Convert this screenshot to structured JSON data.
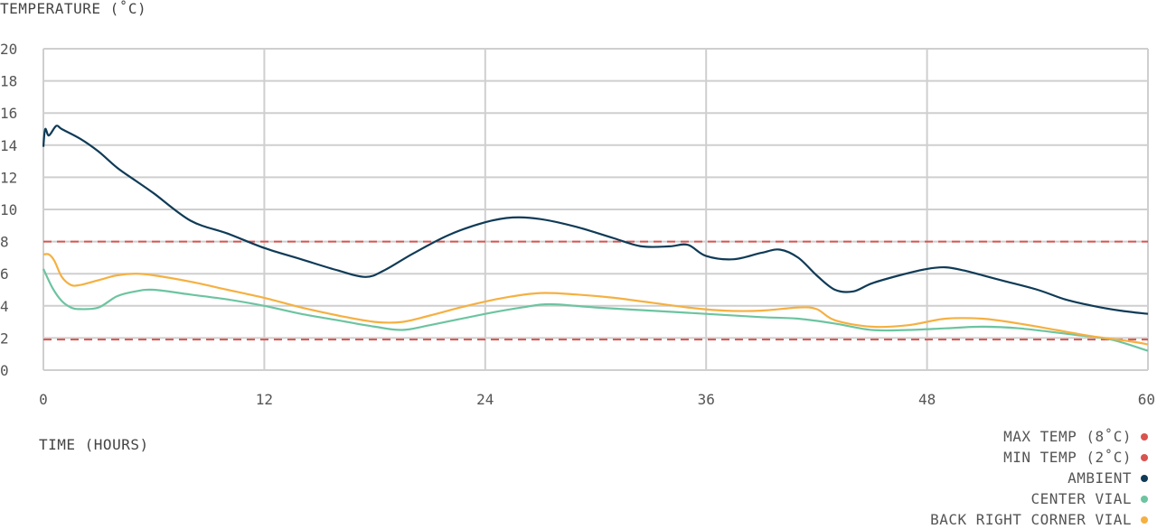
{
  "chart_data": {
    "type": "line",
    "ylabel": "TEMPERATURE (˚C)",
    "xlabel": "TIME (HOURS)",
    "xlim": [
      0,
      60
    ],
    "ylim": [
      0,
      20
    ],
    "x_ticks": [
      0,
      12,
      24,
      36,
      48,
      60
    ],
    "y_ticks": [
      0,
      2,
      4,
      6,
      8,
      10,
      12,
      14,
      16,
      18,
      20
    ],
    "grid": true,
    "legend_position": "bottom-right",
    "thresholds": [
      {
        "name": "MAX TEMP (8˚C)",
        "value": 8,
        "color": "#d9534f"
      },
      {
        "name": "MIN TEMP (2˚C)",
        "value": 1.9,
        "color": "#d9534f"
      }
    ],
    "series": [
      {
        "name": "AMBIENT",
        "color": "#0f3b57",
        "points": [
          [
            0,
            13.9
          ],
          [
            0.1,
            15.0
          ],
          [
            0.3,
            14.6
          ],
          [
            0.7,
            15.2
          ],
          [
            1,
            15.0
          ],
          [
            2,
            14.4
          ],
          [
            3,
            13.6
          ],
          [
            4,
            12.6
          ],
          [
            5,
            11.8
          ],
          [
            6,
            11.0
          ],
          [
            8,
            9.3
          ],
          [
            10,
            8.5
          ],
          [
            12,
            7.6
          ],
          [
            14,
            6.9
          ],
          [
            16,
            6.2
          ],
          [
            17.5,
            5.8
          ],
          [
            18.5,
            6.2
          ],
          [
            20,
            7.2
          ],
          [
            22,
            8.4
          ],
          [
            24,
            9.2
          ],
          [
            25.5,
            9.5
          ],
          [
            27,
            9.4
          ],
          [
            29,
            8.9
          ],
          [
            31,
            8.2
          ],
          [
            32.5,
            7.7
          ],
          [
            34,
            7.7
          ],
          [
            35,
            7.8
          ],
          [
            36,
            7.1
          ],
          [
            37.5,
            6.9
          ],
          [
            39,
            7.3
          ],
          [
            40,
            7.5
          ],
          [
            41,
            7.0
          ],
          [
            42,
            5.9
          ],
          [
            43,
            5.0
          ],
          [
            44,
            4.9
          ],
          [
            45,
            5.4
          ],
          [
            46.5,
            5.9
          ],
          [
            48,
            6.3
          ],
          [
            49,
            6.4
          ],
          [
            50,
            6.2
          ],
          [
            52,
            5.6
          ],
          [
            54,
            5.0
          ],
          [
            55.5,
            4.4
          ],
          [
            57,
            4.0
          ],
          [
            58.5,
            3.7
          ],
          [
            60,
            3.5
          ]
        ]
      },
      {
        "name": "CENTER VIAL",
        "color": "#6cc4a0",
        "points": [
          [
            0,
            6.3
          ],
          [
            0.5,
            5.1
          ],
          [
            1,
            4.3
          ],
          [
            1.5,
            3.9
          ],
          [
            2,
            3.8
          ],
          [
            3,
            3.9
          ],
          [
            4,
            4.6
          ],
          [
            5,
            4.9
          ],
          [
            6,
            5.0
          ],
          [
            8,
            4.7
          ],
          [
            10,
            4.4
          ],
          [
            12,
            4.0
          ],
          [
            14,
            3.5
          ],
          [
            16,
            3.1
          ],
          [
            18,
            2.7
          ],
          [
            19.5,
            2.5
          ],
          [
            21,
            2.8
          ],
          [
            24,
            3.5
          ],
          [
            26,
            3.9
          ],
          [
            27.5,
            4.1
          ],
          [
            30,
            3.9
          ],
          [
            33,
            3.7
          ],
          [
            36,
            3.5
          ],
          [
            39,
            3.3
          ],
          [
            41,
            3.2
          ],
          [
            43,
            2.9
          ],
          [
            45,
            2.5
          ],
          [
            47,
            2.5
          ],
          [
            49,
            2.6
          ],
          [
            51,
            2.7
          ],
          [
            53,
            2.6
          ],
          [
            56,
            2.2
          ],
          [
            58,
            1.9
          ],
          [
            60,
            1.2
          ]
        ]
      },
      {
        "name": "BACK RIGHT CORNER VIAL",
        "color": "#f5b041",
        "points": [
          [
            0,
            7.2
          ],
          [
            0.3,
            7.2
          ],
          [
            0.6,
            6.8
          ],
          [
            1,
            5.8
          ],
          [
            1.5,
            5.3
          ],
          [
            2,
            5.3
          ],
          [
            3,
            5.6
          ],
          [
            4,
            5.9
          ],
          [
            5,
            6.0
          ],
          [
            6,
            5.9
          ],
          [
            8,
            5.5
          ],
          [
            10,
            5.0
          ],
          [
            12,
            4.5
          ],
          [
            14,
            3.9
          ],
          [
            16,
            3.4
          ],
          [
            18,
            3.0
          ],
          [
            19.5,
            3.0
          ],
          [
            21,
            3.4
          ],
          [
            23,
            4.0
          ],
          [
            25,
            4.5
          ],
          [
            27,
            4.8
          ],
          [
            29,
            4.7
          ],
          [
            31,
            4.5
          ],
          [
            33,
            4.2
          ],
          [
            35,
            3.9
          ],
          [
            37,
            3.7
          ],
          [
            39,
            3.7
          ],
          [
            41,
            3.9
          ],
          [
            42,
            3.8
          ],
          [
            43,
            3.1
          ],
          [
            45,
            2.7
          ],
          [
            47,
            2.8
          ],
          [
            49,
            3.2
          ],
          [
            51,
            3.2
          ],
          [
            53,
            2.9
          ],
          [
            55,
            2.5
          ],
          [
            57,
            2.1
          ],
          [
            59,
            1.8
          ],
          [
            60,
            1.6
          ]
        ]
      }
    ]
  }
}
